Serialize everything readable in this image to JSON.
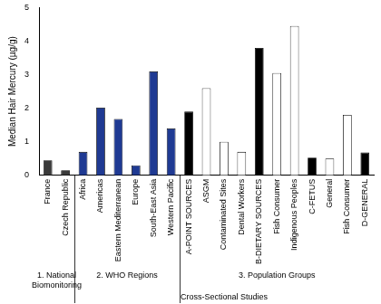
{
  "chart_data": {
    "type": "bar",
    "y_label": "Median Hair Mercury (µg/g)",
    "categories": [
      "France",
      "Czech Republic",
      "Africa",
      "Americas",
      "Eastern Mediterranean",
      "Europe",
      "South-East Asia",
      "Western Pacific",
      "A-POINT SOURCES",
      "ASGM",
      "Contaminated Sites",
      "Dental Workers",
      "B-DIETARY SOURCES",
      "Fish Consumer",
      "Indigenous Peoples",
      "C-FETUS",
      "General",
      "Fish Consumer",
      "D-GENERAL"
    ],
    "values": [
      0.45,
      0.15,
      0.7,
      2.02,
      1.68,
      0.3,
      3.1,
      1.4,
      1.9,
      2.6,
      1.0,
      0.7,
      3.8,
      3.05,
      4.45,
      0.53,
      0.5,
      1.8,
      0.68
    ],
    "colors": [
      "#3a3a3a",
      "#3a3a3a",
      "#1f3a93",
      "#1f3a93",
      "#1f3a93",
      "#1f3a93",
      "#1f3a93",
      "#1f3a93",
      "#000000",
      "#ffffff",
      "#ffffff",
      "#ffffff",
      "#000000",
      "#ffffff",
      "#ffffff",
      "#000000",
      "#ffffff",
      "#ffffff",
      "#000000"
    ],
    "ylim": [
      0,
      5
    ],
    "yticks": [
      0,
      1,
      2,
      3,
      4,
      5
    ],
    "grid": false,
    "groups": [
      {
        "label": "1. National Biomonitoring",
        "start": 0,
        "end": 1
      },
      {
        "label": "2. WHO Regions",
        "start": 2,
        "end": 7
      },
      {
        "label": "3. Population Groups",
        "start": 8,
        "end": 18
      }
    ],
    "supergroups": [
      {
        "label": "Cross-Sectional Studies",
        "start": 2,
        "end": 18
      }
    ]
  }
}
